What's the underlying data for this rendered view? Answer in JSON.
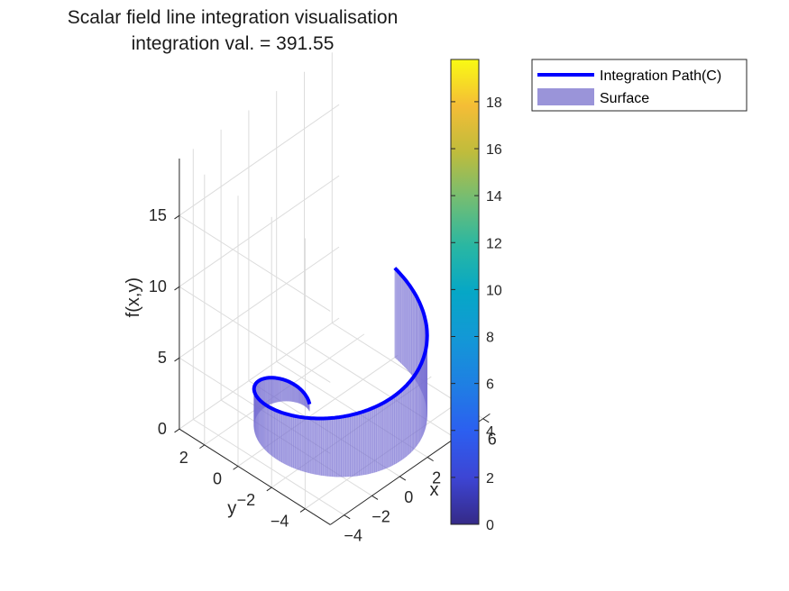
{
  "chart_data": {
    "type": "surface",
    "title": "Scalar field line integration visualisation",
    "subtitle": "integration val. = 391.55",
    "xlabel": "x",
    "ylabel": "y",
    "zlabel": "f(x,y)",
    "x_ticks": [
      -4,
      -2,
      0,
      2,
      4,
      6
    ],
    "y_ticks": [
      -4,
      -2,
      0,
      2
    ],
    "z_ticks": [
      0,
      5,
      10,
      15
    ],
    "xlim": [
      -5,
      6.5
    ],
    "ylim": [
      -5.5,
      3.5
    ],
    "zlim": [
      0,
      19
    ],
    "grid": true,
    "colorbar": {
      "colormap": "parula",
      "limits": [
        0,
        19.8
      ],
      "ticks": [
        0,
        2,
        4,
        6,
        8,
        10,
        12,
        14,
        16,
        18
      ]
    },
    "legend": {
      "placement": "top-right",
      "entries": [
        "Integration Path(C)",
        "Surface"
      ]
    },
    "series": [
      {
        "name": "Integration Path(C)",
        "color": "#0000ff",
        "curve": "spiral x = t·cos(t), y = t·sin(t), f = t",
        "t_range": [
          0.5,
          6.2832
        ]
      },
      {
        "name": "Surface",
        "color": "#7a72d4",
        "opacity": 0.6,
        "description": "curtain from z = 0 up to the path"
      }
    ]
  }
}
